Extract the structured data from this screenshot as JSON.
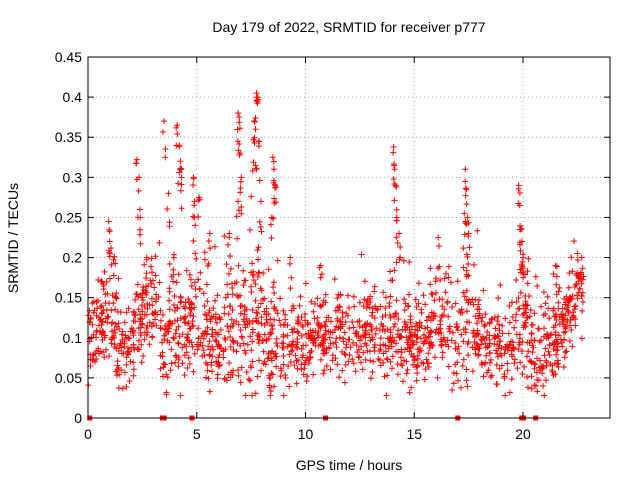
{
  "chart_data": {
    "type": "scatter",
    "title": "Day 179 of 2022, SRMTID for receiver p777",
    "xlabel": "GPS time / hours",
    "ylabel": "SRMTID / TECUs",
    "xlim": [
      0,
      24
    ],
    "ylim": [
      0,
      0.45
    ],
    "grid": true,
    "xticks": [
      0,
      5,
      10,
      15,
      20
    ],
    "xtick_labels": [
      "0",
      "5",
      "10",
      "15",
      "20"
    ],
    "yticks": [
      0,
      0.05,
      0.1,
      0.15,
      0.2,
      0.25,
      0.3,
      0.35,
      0.4,
      0.45
    ],
    "ytick_labels": [
      "0",
      "0.05",
      "0.1",
      "0.15",
      "0.2",
      "0.25",
      "0.3",
      "0.35",
      "0.4",
      "0.45"
    ],
    "marker": "+",
    "series_color": "#ff0000",
    "series": [
      {
        "name": "SRMTID",
        "envelope": {
          "x": [
            0,
            0.5,
            1,
            1.5,
            2,
            2.5,
            3,
            3.5,
            4,
            4.5,
            5,
            5.5,
            6,
            6.5,
            7,
            7.5,
            8,
            8.5,
            9,
            9.5,
            10,
            10.5,
            11,
            11.5,
            12,
            12.5,
            13,
            13.5,
            14,
            14.5,
            15,
            15.5,
            16,
            16.5,
            17,
            17.5,
            18,
            18.5,
            19,
            19.5,
            20,
            20.5,
            21,
            21.5,
            22,
            22.5,
            22.8
          ],
          "median": [
            0.1,
            0.11,
            0.13,
            0.08,
            0.1,
            0.13,
            0.15,
            0.09,
            0.13,
            0.11,
            0.14,
            0.1,
            0.09,
            0.11,
            0.1,
            0.12,
            0.11,
            0.09,
            0.08,
            0.1,
            0.09,
            0.11,
            0.1,
            0.11,
            0.1,
            0.1,
            0.11,
            0.09,
            0.11,
            0.1,
            0.09,
            0.1,
            0.12,
            0.11,
            0.1,
            0.12,
            0.11,
            0.09,
            0.08,
            0.1,
            0.12,
            0.08,
            0.09,
            0.1,
            0.12,
            0.15,
            0.16
          ],
          "spread": [
            0.04,
            0.05,
            0.06,
            0.05,
            0.05,
            0.06,
            0.06,
            0.05,
            0.07,
            0.06,
            0.07,
            0.05,
            0.06,
            0.07,
            0.07,
            0.08,
            0.08,
            0.06,
            0.05,
            0.05,
            0.05,
            0.05,
            0.05,
            0.05,
            0.05,
            0.04,
            0.05,
            0.05,
            0.06,
            0.05,
            0.05,
            0.05,
            0.06,
            0.06,
            0.06,
            0.07,
            0.05,
            0.05,
            0.05,
            0.06,
            0.07,
            0.05,
            0.05,
            0.05,
            0.05,
            0.05,
            0.04
          ]
        },
        "peaks": [
          {
            "x": 0.95,
            "y": 0.245
          },
          {
            "x": 1.0,
            "y": 0.22
          },
          {
            "x": 2.25,
            "y": 0.322
          },
          {
            "x": 2.35,
            "y": 0.3
          },
          {
            "x": 2.4,
            "y": 0.25
          },
          {
            "x": 2.7,
            "y": 0.2
          },
          {
            "x": 3.5,
            "y": 0.37
          },
          {
            "x": 3.7,
            "y": 0.28
          },
          {
            "x": 4.1,
            "y": 0.365
          },
          {
            "x": 4.2,
            "y": 0.34
          },
          {
            "x": 4.25,
            "y": 0.32
          },
          {
            "x": 4.3,
            "y": 0.31
          },
          {
            "x": 4.85,
            "y": 0.3
          },
          {
            "x": 4.9,
            "y": 0.27
          },
          {
            "x": 5.1,
            "y": 0.275
          },
          {
            "x": 5.6,
            "y": 0.23
          },
          {
            "x": 6.5,
            "y": 0.23
          },
          {
            "x": 6.9,
            "y": 0.38
          },
          {
            "x": 6.95,
            "y": 0.375
          },
          {
            "x": 7.0,
            "y": 0.33
          },
          {
            "x": 7.05,
            "y": 0.3
          },
          {
            "x": 6.9,
            "y": 0.27
          },
          {
            "x": 7.6,
            "y": 0.347
          },
          {
            "x": 7.65,
            "y": 0.37
          },
          {
            "x": 7.7,
            "y": 0.36
          },
          {
            "x": 7.75,
            "y": 0.405
          },
          {
            "x": 7.8,
            "y": 0.4
          },
          {
            "x": 7.85,
            "y": 0.345
          },
          {
            "x": 7.95,
            "y": 0.27
          },
          {
            "x": 8.5,
            "y": 0.325
          },
          {
            "x": 8.55,
            "y": 0.31
          },
          {
            "x": 8.6,
            "y": 0.29
          },
          {
            "x": 8.45,
            "y": 0.25
          },
          {
            "x": 9.3,
            "y": 0.2
          },
          {
            "x": 10.7,
            "y": 0.19
          },
          {
            "x": 14.05,
            "y": 0.338
          },
          {
            "x": 14.1,
            "y": 0.31
          },
          {
            "x": 14.15,
            "y": 0.29
          },
          {
            "x": 14.2,
            "y": 0.25
          },
          {
            "x": 14.3,
            "y": 0.23
          },
          {
            "x": 16.1,
            "y": 0.225
          },
          {
            "x": 17.3,
            "y": 0.255
          },
          {
            "x": 17.35,
            "y": 0.31
          },
          {
            "x": 17.4,
            "y": 0.285
          },
          {
            "x": 17.45,
            "y": 0.25
          },
          {
            "x": 17.5,
            "y": 0.23
          },
          {
            "x": 19.8,
            "y": 0.29
          },
          {
            "x": 19.85,
            "y": 0.265
          },
          {
            "x": 19.9,
            "y": 0.235
          },
          {
            "x": 19.95,
            "y": 0.22
          },
          {
            "x": 20.0,
            "y": 0.2
          },
          {
            "x": 21.5,
            "y": 0.19
          },
          {
            "x": 22.5,
            "y": 0.205
          },
          {
            "x": 22.7,
            "y": 0.2
          }
        ],
        "points_per_hour": 75
      }
    ],
    "gap_markers_x": [
      0.08,
      3.42,
      3.5,
      4.78,
      10.92,
      17.0,
      19.94,
      20.02,
      20.58
    ]
  }
}
